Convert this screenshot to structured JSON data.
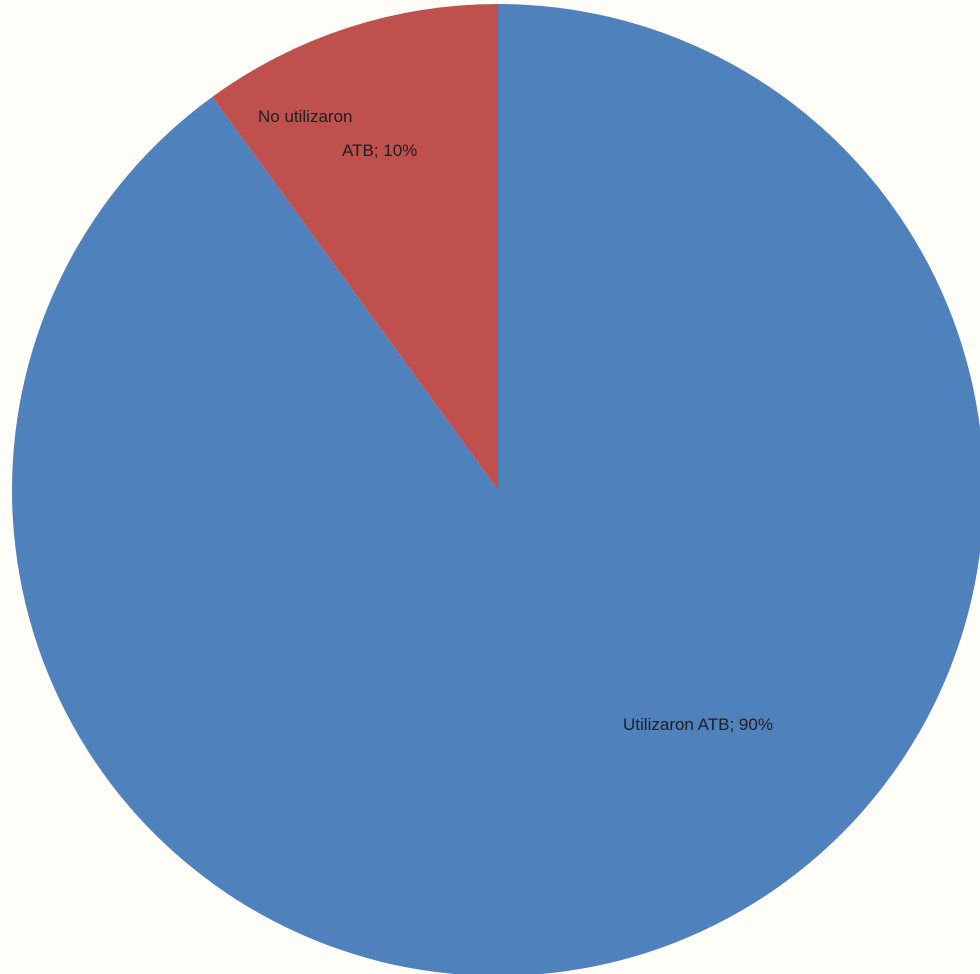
{
  "chart_data": {
    "type": "pie",
    "slices": [
      {
        "label_lines": [
          "Utilizaron ATB; 90%"
        ],
        "category": "Utilizaron ATB",
        "value": 90,
        "color": "#4f81bd"
      },
      {
        "label_lines": [
          "No utilizaron",
          "ATB; 10%"
        ],
        "category": "No utilizaron ATB",
        "value": 10,
        "color": "#c0504d"
      }
    ],
    "start_angle_deg": 0,
    "direction": "clockwise"
  }
}
